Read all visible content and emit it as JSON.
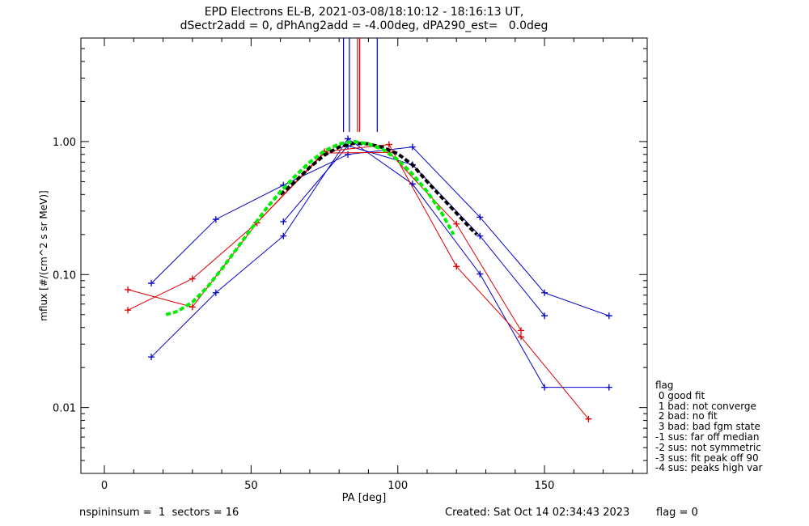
{
  "header": {
    "title_line1": "EPD Electrons EL-B, 2021-03-08/18:10:12 - 18:16:13 UT,",
    "title_line2": "dSectr2add = 0, dPhAng2add = -4.00deg, dPA290_est=   0.0deg"
  },
  "footer": {
    "left": "nspininsum =  1  sectors = 16",
    "created": "Created: Sat Oct 14 02:34:43 2023",
    "flag": "flag = 0"
  },
  "legend": {
    "title": "flag",
    "entries": [
      " 0 good fit",
      " 1 bad: not converge",
      " 2 bad: no fit",
      " 3 bad: bad fgm state",
      "-1 sus: far off median",
      "-2 sus: not symmetric",
      "-3 sus: fit peak off 90",
      "-4 sus: peaks high var"
    ]
  },
  "chart_data": {
    "type": "line",
    "xlabel": "PA [deg]",
    "ylabel": "mflux [#/(cm^2 s sr MeV)]",
    "xlim": [
      -8,
      185
    ],
    "ylim": [
      0.0032,
      6.0
    ],
    "yscale": "log",
    "xticks": [
      0,
      50,
      100,
      150
    ],
    "xtick_labels": [
      "0",
      "50",
      "100",
      "150"
    ],
    "yticks": [
      0.01,
      0.1,
      1.0
    ],
    "ytick_labels": [
      "0.01",
      "0.10",
      "1.00"
    ],
    "colors": {
      "blue": "#0000cc",
      "red": "#dd0000",
      "green": "#00ee00",
      "black": "#000000"
    },
    "series": [
      {
        "color": "blue",
        "marker": "+",
        "x": [
          16,
          38,
          61,
          83,
          105,
          128,
          150,
          172
        ],
        "y": [
          0.086,
          0.26,
          0.47,
          0.8,
          0.91,
          0.27,
          0.073,
          0.049
        ]
      },
      {
        "color": "blue",
        "marker": "+",
        "x": [
          16,
          38,
          61,
          83,
          105,
          128,
          150,
          172
        ],
        "y": [
          0.024,
          0.073,
          0.195,
          1.05,
          0.48,
          0.101,
          0.0142,
          0.0142
        ]
      },
      {
        "color": "blue",
        "marker": "+",
        "x": [
          61,
          83,
          105,
          128,
          150
        ],
        "y": [
          0.25,
          0.93,
          0.67,
          0.195,
          0.049
        ]
      },
      {
        "color": "red",
        "marker": "+",
        "x": [
          8,
          30,
          52,
          75,
          97,
          120,
          142,
          165
        ],
        "y": [
          0.077,
          0.057,
          0.245,
          0.84,
          0.95,
          0.115,
          0.034,
          0.0082
        ]
      },
      {
        "color": "red",
        "marker": "+",
        "x": [
          8,
          30,
          52,
          75,
          97,
          120,
          142
        ],
        "y": [
          0.054,
          0.093,
          0.245,
          0.82,
          0.83,
          0.24,
          0.038
        ]
      }
    ],
    "fits": [
      {
        "color": "black",
        "style": "dashed",
        "x": [
          60,
          65,
          70,
          75,
          80,
          85,
          90,
          95,
          100,
          105,
          110,
          115,
          120,
          125,
          127
        ],
        "y": [
          0.4,
          0.5,
          0.64,
          0.79,
          0.91,
          0.97,
          0.96,
          0.9,
          0.81,
          0.67,
          0.5,
          0.38,
          0.29,
          0.22,
          0.2
        ]
      },
      {
        "color": "green",
        "style": "dashed",
        "x": [
          21,
          25,
          30,
          35,
          40,
          45,
          50,
          55,
          60,
          65,
          70,
          75,
          80,
          85,
          90,
          95,
          100,
          105,
          110,
          115,
          119
        ],
        "y": [
          0.05,
          0.053,
          0.062,
          0.08,
          0.11,
          0.155,
          0.22,
          0.31,
          0.42,
          0.55,
          0.7,
          0.85,
          0.96,
          1.0,
          0.96,
          0.87,
          0.73,
          0.57,
          0.42,
          0.29,
          0.2
        ]
      }
    ],
    "vertical_lines": [
      {
        "color": "blue",
        "x": 81.5
      },
      {
        "color": "blue",
        "x": 83.5
      },
      {
        "color": "red",
        "x": 86.3
      },
      {
        "color": "red",
        "x": 87.0
      },
      {
        "color": "blue",
        "x": 93.0
      }
    ]
  }
}
